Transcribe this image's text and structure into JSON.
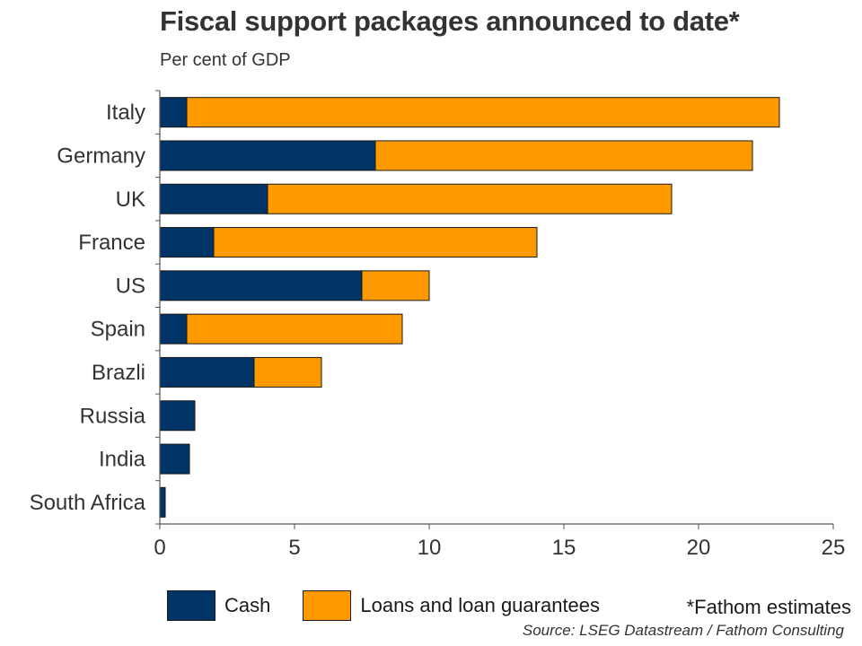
{
  "chart_data": {
    "type": "bar",
    "orientation": "horizontal",
    "stacked": true,
    "title": "Fiscal support packages announced to date*",
    "subtitle": "Per cent of GDP",
    "categories": [
      "Italy",
      "Germany",
      "UK",
      "France",
      "US",
      "Spain",
      "Brazli",
      "Russia",
      "India",
      "South Africa"
    ],
    "series": [
      {
        "name": "Cash",
        "color": "#003366",
        "values": [
          1,
          8,
          4,
          2,
          7.5,
          1,
          3.5,
          1.3,
          1.1,
          0.2
        ]
      },
      {
        "name": "Loans and loan guarantees",
        "color": "#FF9900",
        "values": [
          22,
          14,
          15,
          12,
          2.5,
          8,
          2.5,
          0,
          0,
          0
        ]
      }
    ],
    "xlim": [
      0,
      25
    ],
    "xticks": [
      0,
      5,
      10,
      15,
      20,
      25
    ],
    "xlabel": "",
    "ylabel": "",
    "grid": false,
    "legend_position": "bottom",
    "note": "*Fathom estimates",
    "source": "Source: LSEG Datastream / Fathom Consulting"
  }
}
